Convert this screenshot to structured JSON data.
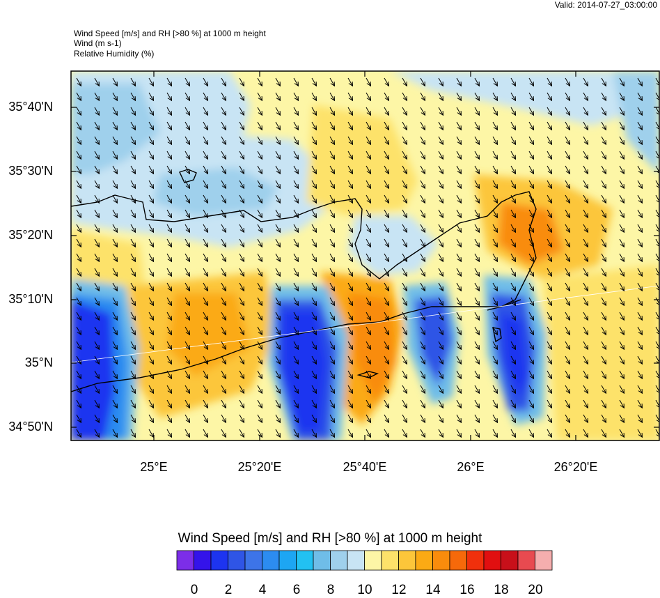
{
  "valid_label": "Valid: 2014-07-27_03:00:00",
  "header": {
    "line1": "Wind Speed [m/s] and RH [>80 %] at 1000 m height",
    "line2": "Wind   (m s-1)",
    "line3": "Relative Humidity   (%)"
  },
  "map": {
    "lat_labels": [
      "35°40'N",
      "35°30'N",
      "35°20'N",
      "35°10'N",
      "35°N",
      "34°50'N"
    ],
    "lon_labels": [
      "25°E",
      "25°20'E",
      "25°40'E",
      "26°E",
      "26°20'E"
    ]
  },
  "colorbar": {
    "title": "Wind Speed [m/s] and RH [>80 %] at 1000 m height",
    "labels": [
      "0",
      "2",
      "4",
      "6",
      "8",
      "10",
      "12",
      "14",
      "16",
      "18",
      "20"
    ],
    "colors": [
      "#7c2ee8",
      "#3413ea",
      "#1d34f0",
      "#2f55e6",
      "#3d74e8",
      "#2c8cf0",
      "#1da6f3",
      "#22c1f2",
      "#6fbde8",
      "#9fd0ec",
      "#c8e4f4",
      "#fdf6a6",
      "#fde26a",
      "#fcc63a",
      "#fbaa14",
      "#f98c0c",
      "#f6690a",
      "#f0300c",
      "#e10f10",
      "#c8101a",
      "#e84a50",
      "#f5aeae"
    ]
  }
}
